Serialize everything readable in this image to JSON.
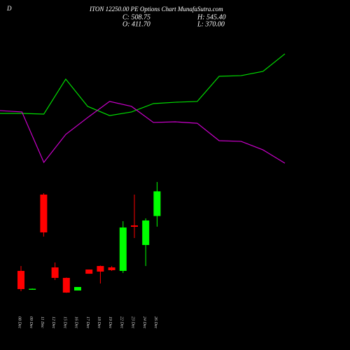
{
  "chart_data": [
    {
      "type": "candlestick",
      "title": "D",
      "subtitle": "ITON 12250.00 PE Options Chart MunafaSutra.com",
      "stats": {
        "close": "C: 508.75",
        "high": "H: 545.40",
        "open": "O: 411.70",
        "low": "L: 370.00"
      },
      "categories": [
        "08 Dec",
        "09 Dec",
        "11 Dec",
        "12 Dec",
        "15 Dec",
        "16 Dec",
        "17 Dec",
        "18 Dec",
        "19 Dec",
        "22 Dec",
        "23 Dec",
        "24 Dec",
        "26 Dec"
      ],
      "open": [
        196.2,
        124,
        495.9,
        209.9,
        168.7,
        119.2,
        201.6,
        215.4,
        209.9,
        196.2,
        374.9,
        297.9,
        411.7
      ],
      "high": [
        215.4,
        127,
        501.4,
        229.2,
        170,
        132.9,
        201.6,
        217,
        215,
        391.4,
        495.9,
        402.4,
        545.4
      ],
      "low": [
        116.4,
        123,
        330.9,
        160.4,
        110,
        119.2,
        185,
        146.6,
        196,
        187.9,
        325.4,
        215.4,
        370
      ],
      "close": [
        124.7,
        126,
        347.4,
        168.7,
        110.9,
        132.9,
        185,
        193.4,
        199,
        366.7,
        369.4,
        394.2,
        508.75
      ],
      "up_color": "#00ff00",
      "down_color": "#ff0000",
      "ylim": [
        105.4,
        545.4
      ]
    },
    {
      "type": "line",
      "x": [
        0,
        1,
        2,
        3,
        4,
        5,
        6,
        7,
        8,
        9,
        10,
        11,
        12,
        13
      ],
      "xlim": [
        0,
        13
      ],
      "ylim": [
        0,
        100
      ],
      "series": [
        {
          "color": "#00dd00",
          "values": [
            46.3,
            46.3,
            45.8,
            72.1,
            51.6,
            44.7,
            47.4,
            53.7,
            54.7,
            55.3,
            74.2,
            74.7,
            77.9,
            91.1
          ]
        },
        {
          "color": "#cc00cc",
          "values": [
            48.4,
            47.4,
            9.5,
            30.5,
            43.2,
            55.3,
            51.6,
            39.5,
            40,
            38.9,
            25.8,
            25.3,
            18.9,
            8.9
          ]
        }
      ]
    }
  ]
}
